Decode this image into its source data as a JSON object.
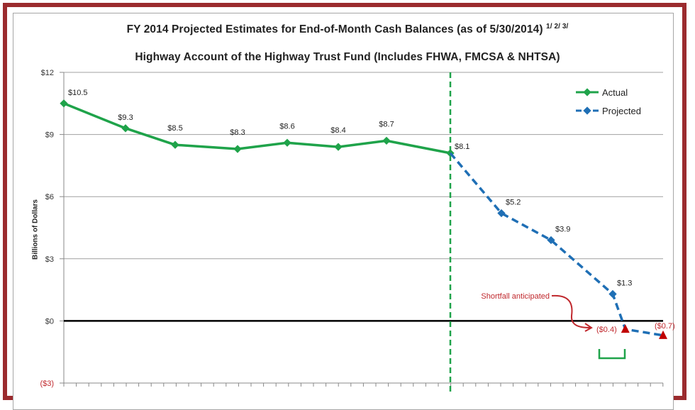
{
  "chart_data": {
    "type": "line",
    "title": "FY 2014 Projected Estimates for End-of-Month Cash Balances (as of 5/30/2014)",
    "title_footnotes": "1/ 2/ 3/",
    "subtitle": "Highway Account of the Highway Trust Fund (Includes FHWA, FMCSA & NHTSA)",
    "ylabel": "Billions of Dollars",
    "ylim": [
      -3,
      12
    ],
    "yticks": [
      {
        "value": 12,
        "label": "$12"
      },
      {
        "value": 9,
        "label": "$9"
      },
      {
        "value": 6,
        "label": "$6"
      },
      {
        "value": 3,
        "label": "$3"
      },
      {
        "value": 0,
        "label": "$0"
      },
      {
        "value": -3,
        "label": "($3)"
      }
    ],
    "grid": true,
    "legend_position": "top-right",
    "series": [
      {
        "name": "Actual",
        "color": "#1fa34a",
        "style": "solid",
        "points": [
          {
            "x": 0,
            "y": 10.5,
            "label": "$10.5"
          },
          {
            "x": 1,
            "y": 9.3,
            "label": "$9.3"
          },
          {
            "x": 2,
            "y": 8.5,
            "label": "$8.5"
          },
          {
            "x": 3,
            "y": 8.3,
            "label": "$8.3"
          },
          {
            "x": 4,
            "y": 8.6,
            "label": "$8.6"
          },
          {
            "x": 5,
            "y": 8.4,
            "label": "$8.4"
          },
          {
            "x": 6,
            "y": 8.7,
            "label": "$8.7"
          },
          {
            "x": 7,
            "y": 8.1,
            "label": "$8.1"
          }
        ]
      },
      {
        "name": "Projected",
        "color": "#1f6fb5",
        "style": "dashed",
        "points": [
          {
            "x": 7,
            "y": 8.1,
            "label": ""
          },
          {
            "x": 8,
            "y": 5.2,
            "label": "$5.2"
          },
          {
            "x": 9,
            "y": 3.9,
            "label": "$3.9"
          },
          {
            "x": 10,
            "y": 1.3,
            "label": "$1.3"
          },
          {
            "x": 10.25,
            "y": -0.4,
            "label": "($0.4)",
            "marker": "triangle"
          },
          {
            "x": 11,
            "y": -0.7,
            "label": "($0.7)",
            "marker": "triangle"
          }
        ]
      }
    ],
    "annotations": [
      {
        "text": "Shortfall anticipated",
        "color": "#c0282d"
      }
    ],
    "negative_color": "#c0282d",
    "divider_color": "#1fa34a",
    "bracket_color": "#1fa34a"
  }
}
